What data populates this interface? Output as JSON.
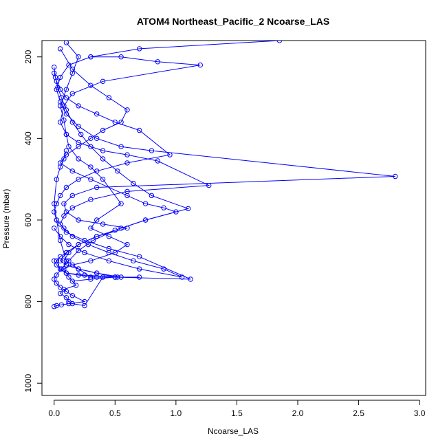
{
  "chart_data": {
    "type": "line",
    "title": "ATOM4 Northeast_Pacific_2 Ncoarse_LAS",
    "xlabel": "Ncoarse_LAS",
    "ylabel": "Pressure (mbar)",
    "xlim": [
      -0.1,
      3.05
    ],
    "ylim": [
      1030,
      160
    ],
    "y_reversed": true,
    "x_ticks": [
      "0.0",
      "0.5",
      "1.0",
      "1.5",
      "2.0",
      "2.5",
      "3.0"
    ],
    "x_tick_values": [
      0,
      0.5,
      1.0,
      1.5,
      2.0,
      2.5,
      3.0
    ],
    "y_ticks": [
      "200",
      "400",
      "600",
      "800",
      "1000"
    ],
    "y_tick_values": [
      200,
      400,
      600,
      800,
      1000
    ],
    "grid": false,
    "series_color": "#0000ff",
    "series": [
      {
        "x": [
          0.1,
          0.2,
          0.15,
          0.1,
          0.05,
          0.08,
          0.1,
          0.12,
          0.2,
          0.3,
          0.4,
          0.55,
          0.35,
          0.3,
          0.45,
          0.6,
          0.5,
          0.3,
          0.15,
          0.08,
          0.12,
          0.18,
          0.08,
          0.05,
          0.1,
          0.12,
          0.15,
          0.25,
          0.4,
          0.52,
          0.3,
          0.2,
          0.1,
          0.05,
          0.02,
          0.0,
          0.02,
          0.05,
          0.08,
          0.1
        ],
        "y": [
          165,
          200,
          240,
          280,
          320,
          355,
          390,
          420,
          450,
          470,
          500,
          560,
          600,
          620,
          640,
          660,
          680,
          700,
          710,
          720,
          740,
          760,
          770,
          780,
          790,
          800,
          805,
          810,
          740,
          740,
          740,
          720,
          700,
          650,
          600,
          560,
          500,
          470,
          450,
          430
        ]
      },
      {
        "x": [
          0.05,
          0.15,
          0.3,
          0.45,
          0.6,
          0.55,
          0.4,
          0.3,
          0.2,
          0.1,
          0.05,
          0.15,
          0.3,
          0.6,
          0.75,
          0.9,
          1.0,
          0.75,
          0.55,
          0.35,
          0.2,
          0.12,
          0.08,
          0.1,
          0.2,
          0.35,
          0.55,
          0.7,
          0.5,
          0.35,
          0.2,
          0.1,
          0.05,
          0.02,
          0.05,
          0.1
        ],
        "y": [
          180,
          230,
          270,
          300,
          330,
          360,
          380,
          400,
          420,
          440,
          460,
          480,
          500,
          540,
          560,
          570,
          580,
          600,
          620,
          640,
          660,
          680,
          700,
          710,
          720,
          730,
          740,
          740,
          740,
          740,
          735,
          730,
          720,
          700,
          690,
          680
        ]
      },
      {
        "x": [
          1.85,
          0.7,
          0.3,
          0.12,
          0.05,
          0.02,
          0.05,
          0.1,
          0.2,
          0.35,
          0.55,
          0.8,
          2.8,
          0.35,
          0.15,
          0.08,
          0.1,
          0.2,
          0.4,
          0.6,
          0.35,
          0.2,
          0.1,
          0.05,
          0.1,
          0.2,
          0.35,
          0.5,
          0.3,
          0.15
        ],
        "y": [
          160,
          180,
          200,
          220,
          250,
          280,
          310,
          340,
          370,
          400,
          420,
          430,
          493,
          520,
          540,
          560,
          580,
          600,
          610,
          620,
          640,
          660,
          680,
          700,
          710,
          720,
          730,
          740,
          745,
          750
        ]
      },
      {
        "x": [
          0.3,
          0.55,
          0.85,
          1.2,
          0.4,
          0.15,
          0.08,
          0.05,
          0.1,
          0.2,
          0.4,
          0.6,
          0.85,
          1.27,
          0.6,
          0.3,
          0.15,
          0.08,
          0.05,
          0.1,
          0.25,
          0.45,
          0.7,
          1.12,
          0.5,
          0.25,
          0.1,
          0.05,
          0.02,
          0.0
        ],
        "y": [
          200,
          200,
          212,
          220,
          260,
          290,
          320,
          360,
          390,
          410,
          430,
          440,
          455,
          515,
          530,
          550,
          570,
          590,
          610,
          630,
          650,
          670,
          690,
          745,
          740,
          735,
          730,
          720,
          710,
          700
        ]
      },
      {
        "x": [
          0.0,
          0.02,
          0.05,
          0.1,
          0.2,
          0.35,
          0.5,
          0.7,
          0.95,
          0.6,
          0.35,
          0.2,
          0.1,
          0.05,
          0.02,
          0.0,
          0.02,
          0.08,
          0.15,
          0.28,
          0.45,
          0.65,
          0.9,
          1.05,
          0.7,
          0.45,
          0.25,
          0.12,
          0.05,
          0.0
        ],
        "y": [
          240,
          260,
          280,
          300,
          320,
          340,
          360,
          380,
          440,
          460,
          480,
          500,
          520,
          540,
          560,
          580,
          600,
          620,
          640,
          660,
          680,
          700,
          720,
          740,
          720,
          700,
          680,
          660,
          640,
          620
        ]
      },
      {
        "x": [
          0.0,
          0.01,
          0.03,
          0.06,
          0.1,
          0.15,
          0.22,
          0.3,
          0.4,
          0.52,
          0.65,
          0.8,
          1.1,
          0.75,
          0.5,
          0.32,
          0.2,
          0.12,
          0.06,
          0.02,
          0.0,
          0.02,
          0.05,
          0.1,
          0.15,
          0.25,
          0.12,
          0.06,
          0.02,
          0.0
        ],
        "y": [
          225,
          250,
          275,
          300,
          330,
          360,
          390,
          420,
          450,
          480,
          510,
          540,
          572,
          600,
          625,
          650,
          675,
          700,
          720,
          735,
          745,
          755,
          765,
          775,
          785,
          800,
          805,
          808,
          810,
          812
        ]
      }
    ]
  }
}
